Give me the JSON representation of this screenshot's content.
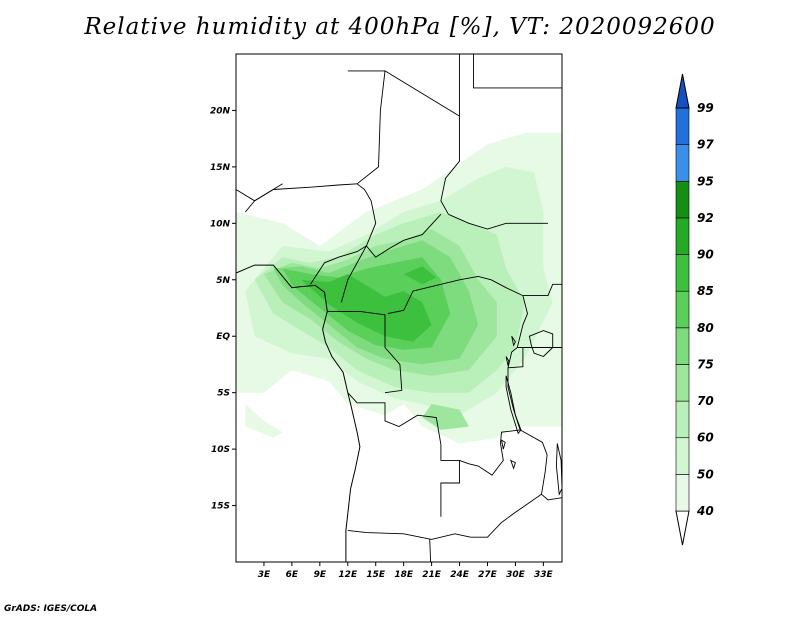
{
  "title": "Relative humidity at 400hPa [%], VT: 2020092600",
  "credit": "GrADS: IGES/COLA",
  "map": {
    "lon_range": [
      0,
      35
    ],
    "lat_range": [
      -20,
      25
    ],
    "lat_ticks": [
      {
        "value": 20,
        "label": "20N"
      },
      {
        "value": 15,
        "label": "15N"
      },
      {
        "value": 10,
        "label": "10N"
      },
      {
        "value": 5,
        "label": "5N"
      },
      {
        "value": 0,
        "label": "EQ"
      },
      {
        "value": -5,
        "label": "5S"
      },
      {
        "value": -10,
        "label": "10S"
      },
      {
        "value": -15,
        "label": "15S"
      }
    ],
    "lon_ticks": [
      {
        "value": 3,
        "label": "3E"
      },
      {
        "value": 6,
        "label": "6E"
      },
      {
        "value": 9,
        "label": "9E"
      },
      {
        "value": 12,
        "label": "12E"
      },
      {
        "value": 15,
        "label": "15E"
      },
      {
        "value": 18,
        "label": "18E"
      },
      {
        "value": 21,
        "label": "21E"
      },
      {
        "value": 24,
        "label": "24E"
      },
      {
        "value": 27,
        "label": "27E"
      },
      {
        "value": 30,
        "label": "30E"
      },
      {
        "value": 33,
        "label": "33E"
      }
    ]
  },
  "colorbar": {
    "levels": [
      {
        "label": "40",
        "color": "#e6fae6"
      },
      {
        "label": "50",
        "color": "#d2f5d2"
      },
      {
        "label": "60",
        "color": "#b9efb9"
      },
      {
        "label": "70",
        "color": "#9ee69e"
      },
      {
        "label": "75",
        "color": "#7edc7e"
      },
      {
        "label": "80",
        "color": "#5acf5a"
      },
      {
        "label": "85",
        "color": "#3dc03d"
      },
      {
        "label": "90",
        "color": "#24aa24"
      },
      {
        "label": "92",
        "color": "#148f14"
      },
      {
        "label": "95",
        "color": "#3a8fea"
      },
      {
        "label": "97",
        "color": "#2270dc"
      },
      {
        "label": "99",
        "color": "#1450c0"
      }
    ],
    "low_color": "#ffffff"
  },
  "humidity_regions": [
    {
      "level": "40",
      "points": [
        [
          0,
          -2
        ],
        [
          0,
          11
        ],
        [
          5,
          10
        ],
        [
          9,
          8
        ],
        [
          14,
          11
        ],
        [
          20,
          13
        ],
        [
          27,
          17
        ],
        [
          31,
          18
        ],
        [
          35,
          18
        ],
        [
          35,
          -8
        ],
        [
          30,
          -8
        ],
        [
          28,
          -9
        ],
        [
          24,
          -9.5
        ],
        [
          20,
          -8
        ],
        [
          18,
          -6
        ],
        [
          16,
          -7
        ],
        [
          12,
          -6
        ],
        [
          10,
          -4
        ],
        [
          6,
          -3
        ],
        [
          3,
          -5
        ],
        [
          0,
          -5
        ]
      ]
    },
    {
      "level": "40",
      "points": [
        [
          1,
          -6
        ],
        [
          3,
          -7.5
        ],
        [
          5,
          -8.5
        ],
        [
          4,
          -9
        ],
        [
          1,
          -8
        ]
      ]
    },
    {
      "level": "50",
      "points": [
        [
          1,
          4
        ],
        [
          5,
          8
        ],
        [
          10,
          7.5
        ],
        [
          14,
          9
        ],
        [
          18,
          11
        ],
        [
          22,
          12
        ],
        [
          26,
          14
        ],
        [
          29,
          15
        ],
        [
          32,
          14.5
        ],
        [
          33,
          11
        ],
        [
          33,
          6
        ],
        [
          34,
          3
        ],
        [
          31,
          -2
        ],
        [
          28,
          -5
        ],
        [
          24,
          -7
        ],
        [
          20,
          -6
        ],
        [
          17,
          -5.5
        ],
        [
          13,
          -4
        ],
        [
          10,
          -2
        ],
        [
          6,
          -1.5
        ],
        [
          2,
          0
        ]
      ]
    },
    {
      "level": "60",
      "points": [
        [
          2,
          5
        ],
        [
          5,
          7
        ],
        [
          8,
          6.5
        ],
        [
          11,
          7
        ],
        [
          15,
          9
        ],
        [
          18,
          10
        ],
        [
          22,
          11
        ],
        [
          25,
          10
        ],
        [
          28,
          9
        ],
        [
          29,
          6
        ],
        [
          31,
          3
        ],
        [
          30,
          -1
        ],
        [
          28,
          -3
        ],
        [
          25,
          -5
        ],
        [
          21,
          -5
        ],
        [
          17,
          -4.5
        ],
        [
          13,
          -3
        ],
        [
          10,
          -1
        ],
        [
          7,
          0.5
        ],
        [
          4,
          2
        ]
      ]
    },
    {
      "level": "70",
      "points": [
        [
          3,
          5.5
        ],
        [
          6,
          6.5
        ],
        [
          9,
          6
        ],
        [
          12,
          6.8
        ],
        [
          15,
          8
        ],
        [
          18,
          8.5
        ],
        [
          21,
          9.5
        ],
        [
          24,
          8
        ],
        [
          26,
          5
        ],
        [
          28,
          3
        ],
        [
          28,
          0
        ],
        [
          25,
          -3
        ],
        [
          21,
          -3.5
        ],
        [
          17,
          -3
        ],
        [
          14,
          -2
        ],
        [
          11,
          -0.5
        ],
        [
          8,
          1.5
        ],
        [
          5,
          3
        ]
      ]
    },
    {
      "level": "70",
      "points": [
        [
          21,
          -6
        ],
        [
          24,
          -6.5
        ],
        [
          25,
          -8
        ],
        [
          22,
          -8.3
        ],
        [
          20,
          -7.2
        ]
      ]
    },
    {
      "level": "75",
      "points": [
        [
          4,
          6
        ],
        [
          7,
          6.2
        ],
        [
          10,
          5.6
        ],
        [
          13,
          6.6
        ],
        [
          16,
          7.5
        ],
        [
          20,
          8.5
        ],
        [
          23,
          7
        ],
        [
          25,
          4
        ],
        [
          26,
          1
        ],
        [
          24,
          -2
        ],
        [
          20,
          -2.5
        ],
        [
          16,
          -2
        ],
        [
          13,
          -1
        ],
        [
          10,
          1
        ],
        [
          7,
          3
        ],
        [
          5,
          4.5
        ]
      ]
    },
    {
      "level": "80",
      "points": [
        [
          5,
          6
        ],
        [
          8,
          5.5
        ],
        [
          11,
          5.2
        ],
        [
          14,
          6
        ],
        [
          17,
          6.5
        ],
        [
          20,
          7
        ],
        [
          22,
          5
        ],
        [
          23,
          2
        ],
        [
          21,
          -1
        ],
        [
          18,
          -1.2
        ],
        [
          15,
          -0.8
        ],
        [
          12,
          0.5
        ],
        [
          9,
          2.5
        ],
        [
          6,
          4.5
        ]
      ]
    },
    {
      "level": "85",
      "points": [
        [
          7,
          5
        ],
        [
          10,
          4.8
        ],
        [
          12,
          5.5
        ],
        [
          14,
          4.5
        ],
        [
          16,
          3.5
        ],
        [
          18,
          4
        ],
        [
          20,
          3
        ],
        [
          21,
          1
        ],
        [
          19,
          -0.5
        ],
        [
          16,
          0
        ],
        [
          13,
          1.2
        ],
        [
          10,
          2.8
        ]
      ]
    },
    {
      "level": "85",
      "points": [
        [
          18,
          5.5
        ],
        [
          20,
          6.2
        ],
        [
          21.5,
          5.2
        ],
        [
          20,
          4.6
        ]
      ]
    }
  ],
  "borders": [
    [
      [
        0,
        13
      ],
      [
        2,
        12
      ],
      [
        4,
        13
      ],
      [
        8,
        13.2
      ],
      [
        11,
        13.4
      ],
      [
        13,
        13.5
      ]
    ],
    [
      [
        13,
        13.5
      ],
      [
        13.8,
        13
      ],
      [
        14.5,
        12
      ],
      [
        15,
        10
      ],
      [
        14,
        8
      ],
      [
        15,
        7
      ],
      [
        16.5,
        7.8
      ],
      [
        18,
        8.5
      ],
      [
        20,
        9
      ],
      [
        22,
        10.8
      ]
    ],
    [
      [
        13,
        13.5
      ],
      [
        15.3,
        15
      ],
      [
        15.5,
        20
      ],
      [
        16,
        23.5
      ],
      [
        24,
        19.5
      ]
    ],
    [
      [
        12,
        23.5
      ],
      [
        16,
        23.5
      ]
    ],
    [
      [
        24,
        25
      ],
      [
        24,
        19.5
      ],
      [
        24,
        15.5
      ],
      [
        22.5,
        14
      ],
      [
        22,
        12
      ],
      [
        22.8,
        10.8
      ]
    ],
    [
      [
        22.8,
        10.8
      ],
      [
        25,
        10
      ],
      [
        27,
        9.5
      ],
      [
        29,
        10
      ],
      [
        33.5,
        10
      ]
    ],
    [
      [
        25.5,
        25
      ],
      [
        25.5,
        22
      ],
      [
        35,
        22
      ]
    ],
    [
      [
        14,
        8
      ],
      [
        13,
        6.5
      ],
      [
        12,
        5
      ],
      [
        11.3,
        3
      ]
    ],
    [
      [
        5,
        13.5
      ],
      [
        2,
        12
      ],
      [
        1,
        11
      ]
    ],
    [
      [
        8,
        4.6
      ],
      [
        9.5,
        6.5
      ],
      [
        11,
        7
      ],
      [
        13,
        7.5
      ],
      [
        14,
        8
      ]
    ],
    [
      [
        11.3,
        2.2
      ],
      [
        9.8,
        2.2
      ]
    ],
    [
      [
        11.3,
        2.2
      ],
      [
        13.3,
        2.2
      ],
      [
        16,
        1.9
      ],
      [
        16,
        -1
      ],
      [
        17.6,
        -2.5
      ],
      [
        17.8,
        -4.8
      ],
      [
        16,
        -5
      ]
    ],
    [
      [
        16.3,
        2
      ],
      [
        18,
        2.3
      ],
      [
        19,
        4
      ],
      [
        20.5,
        4.3
      ],
      [
        22,
        4.6
      ],
      [
        24,
        5
      ],
      [
        26,
        5.3
      ],
      [
        27.4,
        5
      ],
      [
        29,
        4.3
      ],
      [
        30.8,
        3.6
      ]
    ],
    [
      [
        30.8,
        3.6
      ],
      [
        31.3,
        2
      ],
      [
        30.8,
        1
      ],
      [
        30.2,
        -1
      ],
      [
        29.6,
        -1.4
      ],
      [
        29.2,
        -2.8
      ],
      [
        29.2,
        -4.5
      ],
      [
        29.8,
        -6.5
      ],
      [
        30.5,
        -8.3
      ]
    ],
    [
      [
        30.8,
        3.6
      ],
      [
        33.5,
        3.6
      ],
      [
        34,
        4.6
      ],
      [
        35,
        4.6
      ]
    ],
    [
      [
        30.2,
        -1
      ],
      [
        33.9,
        -1
      ],
      [
        35,
        -1
      ]
    ],
    [
      [
        29.2,
        -2.8
      ],
      [
        30.8,
        -2.7
      ],
      [
        30.8,
        -1
      ]
    ],
    [
      [
        12,
        -5
      ],
      [
        13,
        -5.9
      ],
      [
        16,
        -5.9
      ],
      [
        16,
        -7.5
      ],
      [
        17.5,
        -8
      ],
      [
        19.5,
        -7
      ],
      [
        21.5,
        -7.2
      ],
      [
        22,
        -9.6
      ],
      [
        22,
        -11
      ],
      [
        24,
        -11
      ],
      [
        24,
        -13
      ],
      [
        22,
        -13
      ],
      [
        22,
        -16
      ]
    ],
    [
      [
        30.5,
        -8.3
      ],
      [
        28.5,
        -8.5
      ],
      [
        28.4,
        -9.5
      ],
      [
        28.7,
        -11
      ],
      [
        27.5,
        -12.3
      ],
      [
        26,
        -11.5
      ],
      [
        25,
        -11.3
      ],
      [
        24,
        -11
      ]
    ],
    [
      [
        12,
        -17.2
      ],
      [
        14,
        -17.4
      ],
      [
        18,
        -17.5
      ],
      [
        21,
        -18
      ],
      [
        23.5,
        -17.5
      ],
      [
        25.2,
        -17.8
      ]
    ],
    [
      [
        20.8,
        -18
      ],
      [
        21,
        -22
      ]
    ],
    [
      [
        30.5,
        -8.3
      ],
      [
        32.9,
        -9.4
      ],
      [
        33.4,
        -10.5
      ],
      [
        33.2,
        -12
      ],
      [
        32.8,
        -14
      ],
      [
        30,
        -15.6
      ],
      [
        28.5,
        -16.5
      ],
      [
        27,
        -17.8
      ],
      [
        25.2,
        -17.8
      ]
    ],
    [
      [
        32.8,
        -14
      ],
      [
        33.5,
        -14.5
      ],
      [
        35,
        -14.3
      ]
    ]
  ],
  "coastline": [
    [
      [
        0,
        5.6
      ],
      [
        2,
        6.3
      ],
      [
        4,
        6.3
      ],
      [
        6,
        4.3
      ],
      [
        7,
        4.4
      ],
      [
        8.5,
        4.5
      ],
      [
        9.5,
        3.9
      ],
      [
        9.8,
        2.2
      ],
      [
        9.3,
        0.6
      ],
      [
        9.6,
        -0.5
      ],
      [
        10.3,
        -1.8
      ],
      [
        11.5,
        -3.2
      ],
      [
        12,
        -5
      ],
      [
        12.3,
        -6
      ],
      [
        13,
        -8.5
      ],
      [
        13.3,
        -9.8
      ],
      [
        12.8,
        -11.8
      ],
      [
        12.3,
        -13.5
      ],
      [
        12.1,
        -15
      ],
      [
        11.8,
        -17.2
      ],
      [
        11.8,
        -20
      ]
    ]
  ],
  "lakes": [
    [
      [
        29,
        -3.5
      ],
      [
        29.5,
        -5
      ],
      [
        30,
        -7
      ],
      [
        30.6,
        -8.3
      ],
      [
        30.3,
        -8.6
      ],
      [
        29.5,
        -6.5
      ],
      [
        29,
        -4.5
      ]
    ],
    [
      [
        34.5,
        -9.5
      ],
      [
        34.9,
        -11
      ],
      [
        35,
        -13.5
      ],
      [
        34.7,
        -14
      ],
      [
        34.4,
        -11.5
      ]
    ],
    [
      [
        29.6,
        0
      ],
      [
        30,
        -0.5
      ],
      [
        29.8,
        -0.8
      ]
    ],
    [
      [
        31.5,
        0
      ],
      [
        33,
        0.5
      ],
      [
        34,
        0.2
      ],
      [
        34,
        -1
      ],
      [
        33,
        -1.8
      ],
      [
        32,
        -1.5
      ],
      [
        31.7,
        -0.8
      ]
    ],
    [
      [
        28.5,
        -9.2
      ],
      [
        28.9,
        -9.4
      ],
      [
        28.7,
        -10
      ]
    ],
    [
      [
        29.5,
        -11
      ],
      [
        30,
        -11.2
      ],
      [
        29.8,
        -11.7
      ]
    ],
    [
      [
        29,
        -1.8
      ],
      [
        29.3,
        -2.2
      ],
      [
        29.2,
        -2.6
      ]
    ]
  ]
}
